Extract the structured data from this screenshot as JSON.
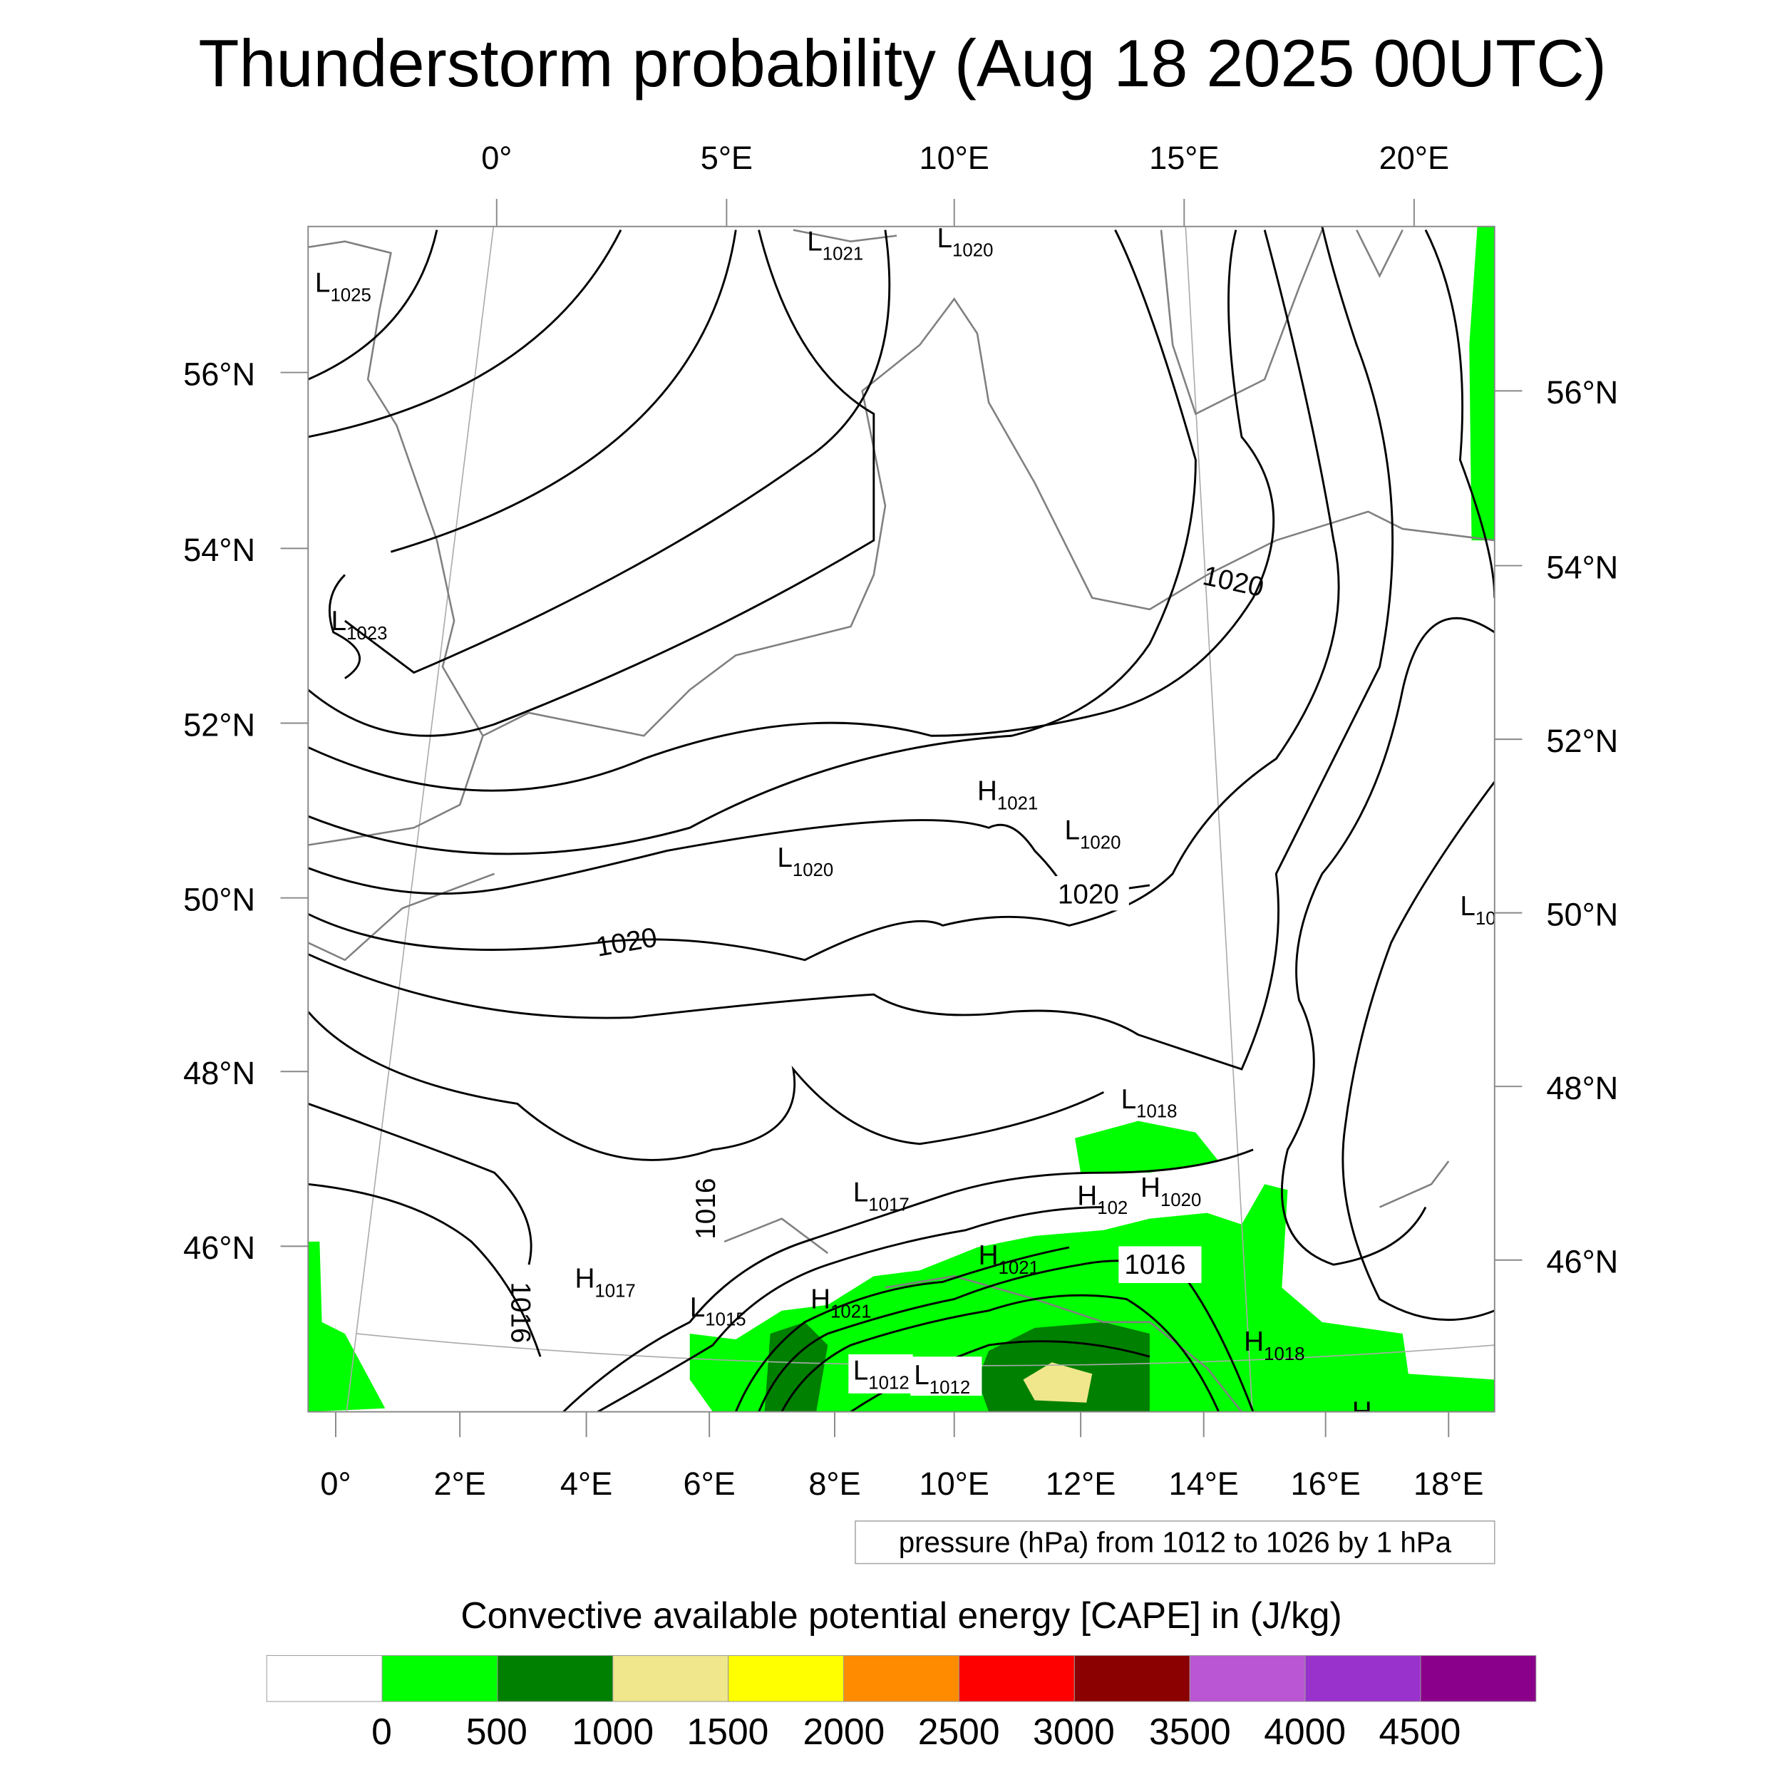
{
  "title": "Thunderstorm probability (Aug 18 2025 00UTC)",
  "axes": {
    "top_lon_labels": [
      "0°",
      "5°E",
      "10°E",
      "15°E",
      "20°E"
    ],
    "bottom_lon_labels": [
      "0°",
      "2°E",
      "4°E",
      "6°E",
      "8°E",
      "10°E",
      "12°E",
      "14°E",
      "16°E",
      "18°E"
    ],
    "left_lat_labels": [
      "56°N",
      "54°N",
      "52°N",
      "50°N",
      "48°N",
      "46°N"
    ],
    "right_lat_labels": [
      "56°N",
      "54°N",
      "52°N",
      "50°N",
      "48°N",
      "46°N"
    ]
  },
  "pressure_centers": [
    {
      "type": "L",
      "value": "1025"
    },
    {
      "type": "L",
      "value": "1021"
    },
    {
      "type": "L",
      "value": "1020"
    },
    {
      "type": "L",
      "value": "1023"
    },
    {
      "type": "H",
      "value": "1021"
    },
    {
      "type": "L",
      "value": "1020"
    },
    {
      "type": "L",
      "value": "1020"
    },
    {
      "type": "L",
      "value": "10"
    },
    {
      "type": "L",
      "value": "1018"
    },
    {
      "type": "L",
      "value": "1017"
    },
    {
      "type": "H",
      "value": "102"
    },
    {
      "type": "H",
      "value": "1020"
    },
    {
      "type": "H",
      "value": "1021"
    },
    {
      "type": "H",
      "value": "1017"
    },
    {
      "type": "L",
      "value": "1015"
    },
    {
      "type": "H",
      "value": "1021"
    },
    {
      "type": "H",
      "value": "1018"
    },
    {
      "type": "L",
      "value": "1012"
    },
    {
      "type": "L",
      "value": "1012"
    },
    {
      "type": "H",
      "value": ""
    }
  ],
  "contour_labels": [
    "1020",
    "1020",
    "1020",
    "1016",
    "1016",
    "1016"
  ],
  "pressure_info": "pressure (hPa) from 1012 to 1026 by 1 hPa",
  "colorbar": {
    "title": "Convective available potential energy [CAPE] in (J/kg)",
    "colors": [
      "#ffffff",
      "#00ff00",
      "#008000",
      "#f0e68c",
      "#ffff00",
      "#ff8c00",
      "#ff0000",
      "#8b0000",
      "#ba55d3",
      "#9932cc",
      "#8b008b"
    ],
    "labels": [
      "0",
      "500",
      "1000",
      "1500",
      "2000",
      "2500",
      "3000",
      "3500",
      "4000",
      "4500"
    ]
  }
}
